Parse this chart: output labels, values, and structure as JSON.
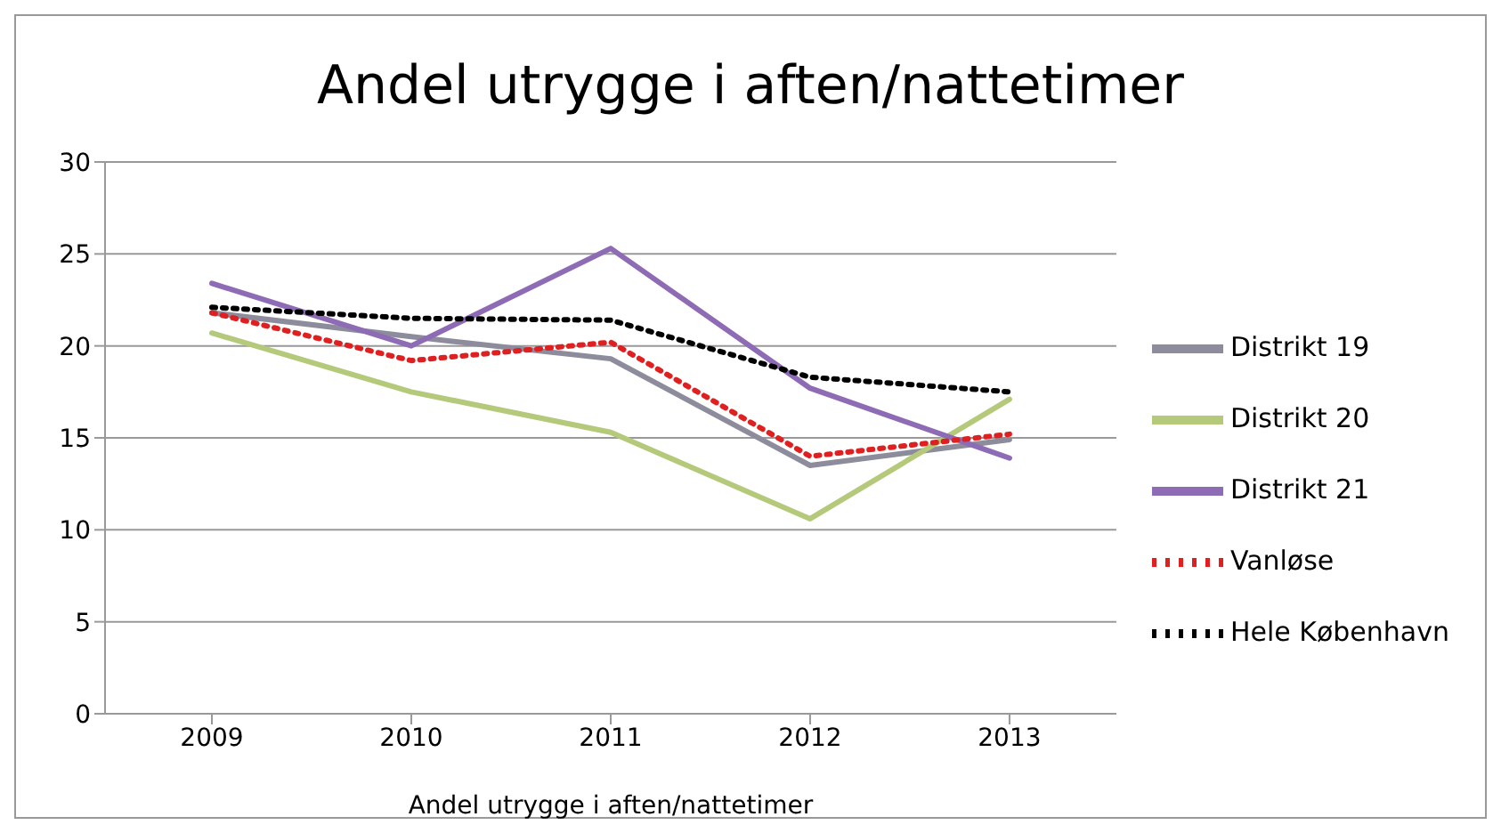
{
  "chart_data": {
    "type": "line",
    "title": "Andel utrygge i aften/nattetimer",
    "xlabel": "Andel utrygge i aften/nattetimer",
    "categories": [
      "2009",
      "2010",
      "2011",
      "2012",
      "2013"
    ],
    "series": [
      {
        "name": "Distrikt 19",
        "color": "#8c8c9c",
        "values": [
          21.8,
          20.5,
          19.3,
          13.5,
          14.9
        ]
      },
      {
        "name": "Distrikt 20",
        "color": "#b5c97a",
        "values": [
          20.7,
          17.5,
          15.3,
          10.6,
          17.1
        ]
      },
      {
        "name": "Distrikt 21",
        "color": "#8e6bb5",
        "values": [
          23.4,
          20.0,
          25.3,
          17.7,
          13.9
        ]
      },
      {
        "name": "Vanløse",
        "color": "#e02020",
        "values": [
          21.8,
          19.2,
          20.2,
          14.0,
          15.2
        ],
        "line_style": "dotted"
      },
      {
        "name": "Hele København",
        "color": "#000000",
        "values": [
          22.1,
          21.5,
          21.4,
          18.3,
          17.5
        ],
        "line_style": "dotted"
      }
    ],
    "ylim": [
      0,
      30
    ],
    "yticks": [
      0,
      5,
      10,
      15,
      20,
      25,
      30
    ],
    "grid": "y",
    "legend": "right",
    "marker": "none",
    "line_style": "solid"
  }
}
